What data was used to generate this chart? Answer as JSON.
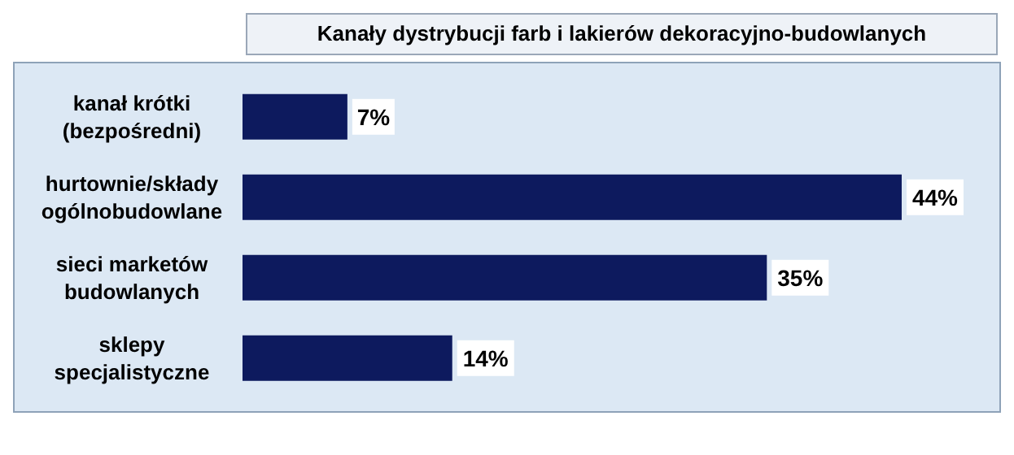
{
  "chart_data": {
    "type": "bar",
    "orientation": "horizontal",
    "title": "Kanały dystrybucji farb i lakierów dekoracyjno-budowlanych",
    "categories": [
      "kanał krótki\n(bezpośredni)",
      "hurtownie/składy\nogólnobudowlane",
      "sieci marketów\nbudowlanych",
      "sklepy\nspecjalistyczne"
    ],
    "values": [
      7,
      44,
      35,
      14
    ],
    "value_labels": [
      "7%",
      "44%",
      "35%",
      "14%"
    ],
    "color": "#0d1a5e"
  }
}
